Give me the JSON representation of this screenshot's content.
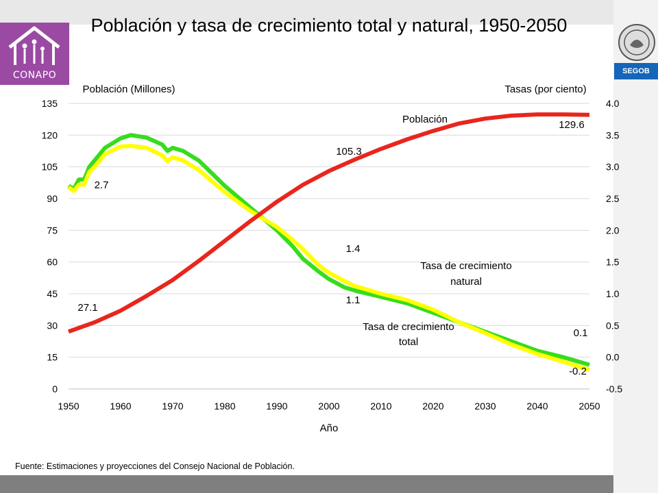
{
  "title": "Población y tasa de crecimiento total y natural, 1950-2050",
  "source": "Fuente: Estimaciones y proyecciones del Consejo Nacional de Población.",
  "logo": {
    "text": "CONAPO"
  },
  "agency": {
    "text": "SEGOB"
  },
  "colors": {
    "poblacion": "#e8261e",
    "natural": "#37dc1e",
    "total": "#ffff00",
    "brand": "#9a4aa2",
    "segob": "#1565b8"
  },
  "chart_data": {
    "type": "line",
    "xlabel": "Año",
    "ylabel_left": "Población (Millones)",
    "ylabel_right": "Tasas (por ciento)",
    "xlim": [
      1950,
      2050
    ],
    "ylim_left": [
      0,
      135
    ],
    "ylim_right": [
      -0.5,
      4.0
    ],
    "x_ticks": [
      "1950",
      "1960",
      "1970",
      "1980",
      "1990",
      "2000",
      "2010",
      "2020",
      "2030",
      "2040",
      "2050"
    ],
    "y_ticks_left": [
      "0",
      "15",
      "30",
      "45",
      "60",
      "75",
      "90",
      "105",
      "120",
      "135"
    ],
    "y_ticks_right": [
      "-0.5",
      "0.0",
      "0.5",
      "1.0",
      "1.5",
      "2.0",
      "2.5",
      "3.0",
      "3.5",
      "4.0"
    ],
    "grid": true,
    "series": [
      {
        "name": "Población",
        "axis": "left",
        "x": [
          1950,
          1955,
          1960,
          1965,
          1970,
          1975,
          1980,
          1985,
          1990,
          1995,
          2000,
          2005,
          2010,
          2015,
          2020,
          2025,
          2030,
          2035,
          2040,
          2045,
          2050
        ],
        "values": [
          27.1,
          31.5,
          37,
          44,
          51.5,
          60.5,
          70,
          79.5,
          88.5,
          96.5,
          103,
          108.5,
          113.5,
          118,
          122,
          125.5,
          127.8,
          129.2,
          129.8,
          129.8,
          129.6
        ]
      },
      {
        "name": "Tasa de crecimiento natural",
        "axis": "right",
        "x": [
          1950,
          1951,
          1952,
          1953,
          1954,
          1955,
          1957,
          1960,
          1962,
          1965,
          1968,
          1969,
          1970,
          1972,
          1975,
          1980,
          1985,
          1990,
          1993,
          1995,
          1998,
          2000,
          2003,
          2005,
          2010,
          2015,
          2020,
          2025,
          2030,
          2035,
          2040,
          2045,
          2050
        ],
        "values": [
          2.7,
          2.65,
          2.8,
          2.8,
          3.0,
          3.1,
          3.3,
          3.45,
          3.5,
          3.46,
          3.35,
          3.25,
          3.3,
          3.25,
          3.1,
          2.7,
          2.35,
          2.0,
          1.75,
          1.55,
          1.35,
          1.23,
          1.1,
          1.05,
          0.95,
          0.85,
          0.7,
          0.55,
          0.4,
          0.25,
          0.1,
          0.0,
          -0.12
        ]
      },
      {
        "name": "Tasa de crecimiento total",
        "axis": "right",
        "x": [
          1950,
          1951,
          1952,
          1953,
          1954,
          1955,
          1957,
          1960,
          1962,
          1965,
          1968,
          1969,
          1970,
          1972,
          1975,
          1980,
          1985,
          1990,
          1993,
          1995,
          1998,
          2000,
          2003,
          2005,
          2010,
          2015,
          2020,
          2025,
          2030,
          2035,
          2040,
          2045,
          2050
        ],
        "values": [
          2.68,
          2.62,
          2.72,
          2.72,
          2.92,
          3.0,
          3.2,
          3.32,
          3.33,
          3.3,
          3.18,
          3.09,
          3.15,
          3.1,
          2.95,
          2.6,
          2.3,
          2.05,
          1.85,
          1.7,
          1.45,
          1.33,
          1.2,
          1.12,
          1.0,
          0.9,
          0.75,
          0.55,
          0.38,
          0.2,
          0.05,
          -0.07,
          -0.2
        ]
      }
    ],
    "annotations": [
      {
        "text": "Población"
      },
      {
        "text": "Tasa de crecimiento natural"
      },
      {
        "text": "Tasa de crecimiento total"
      },
      {
        "text": "27.1"
      },
      {
        "text": "105.3"
      },
      {
        "text": "129.6"
      },
      {
        "text": "2.7"
      },
      {
        "text": "1.4"
      },
      {
        "text": "1.1"
      },
      {
        "text": "0.1"
      },
      {
        "text": "-0.2"
      }
    ]
  }
}
